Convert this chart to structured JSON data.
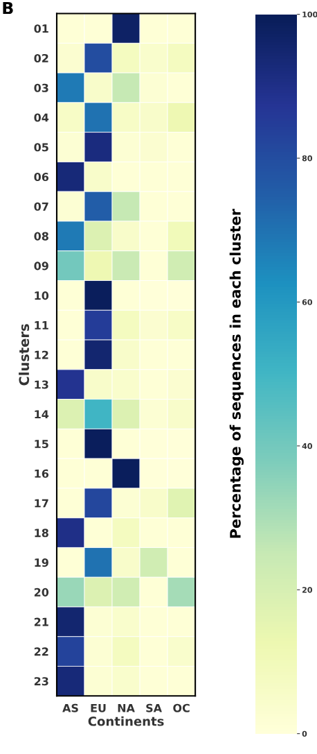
{
  "chart_data": {
    "type": "heatmap",
    "title": "B",
    "xlabel": "Continents",
    "ylabel": "Clusters",
    "clabel": "Percentage of sequences in each cluster",
    "categories": [
      "AS",
      "EU",
      "NA",
      "SA",
      "OC"
    ],
    "y_categories": [
      "01",
      "02",
      "03",
      "04",
      "05",
      "06",
      "07",
      "08",
      "09",
      "10",
      "11",
      "12",
      "13",
      "14",
      "15",
      "16",
      "17",
      "18",
      "19",
      "20",
      "21",
      "22",
      "23"
    ],
    "cells": [
      [
        1,
        1,
        97,
        1,
        1
      ],
      [
        3,
        80,
        8,
        4,
        8
      ],
      [
        68,
        5,
        25,
        2,
        1
      ],
      [
        6,
        70,
        6,
        5,
        12
      ],
      [
        2,
        92,
        2,
        3,
        1
      ],
      [
        93,
        5,
        1,
        1,
        1
      ],
      [
        2,
        75,
        25,
        1,
        1
      ],
      [
        68,
        18,
        5,
        1,
        10
      ],
      [
        40,
        12,
        24,
        1,
        22
      ],
      [
        1,
        99,
        1,
        0,
        0
      ],
      [
        1,
        85,
        8,
        3,
        6
      ],
      [
        1,
        95,
        5,
        1,
        1
      ],
      [
        88,
        5,
        4,
        1,
        3
      ],
      [
        18,
        50,
        18,
        2,
        5
      ],
      [
        1,
        99,
        1,
        0,
        0
      ],
      [
        1,
        1,
        99,
        0,
        0
      ],
      [
        1,
        82,
        2,
        5,
        17
      ],
      [
        90,
        1,
        8,
        1,
        1
      ],
      [
        1,
        70,
        5,
        22,
        1
      ],
      [
        33,
        18,
        22,
        1,
        31
      ],
      [
        95,
        2,
        4,
        1,
        1
      ],
      [
        83,
        2,
        8,
        1,
        4
      ],
      [
        93,
        2,
        4,
        1,
        1
      ]
    ],
    "clim": [
      0,
      100
    ],
    "cticks": [
      0,
      20,
      40,
      60,
      80,
      100
    ]
  }
}
